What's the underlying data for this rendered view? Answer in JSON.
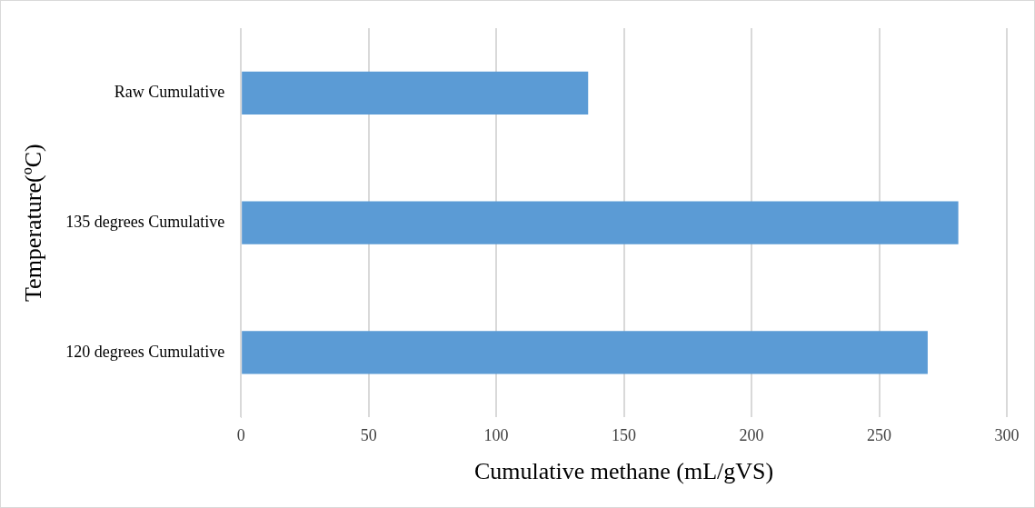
{
  "chart_data": {
    "type": "bar",
    "orientation": "horizontal",
    "xlabel": "Cumulative methane (mL/gVS)",
    "ylabel": "Temperature(ºC)",
    "categories": [
      "Raw Cumulative",
      "135 degrees Cumulative",
      "120 degrees Cumulative"
    ],
    "values": [
      136,
      281,
      269
    ],
    "color": "#5b9bd5",
    "xlim": [
      0,
      300
    ],
    "xticks": [
      0,
      50,
      100,
      150,
      200,
      250,
      300
    ],
    "grid": "x"
  }
}
